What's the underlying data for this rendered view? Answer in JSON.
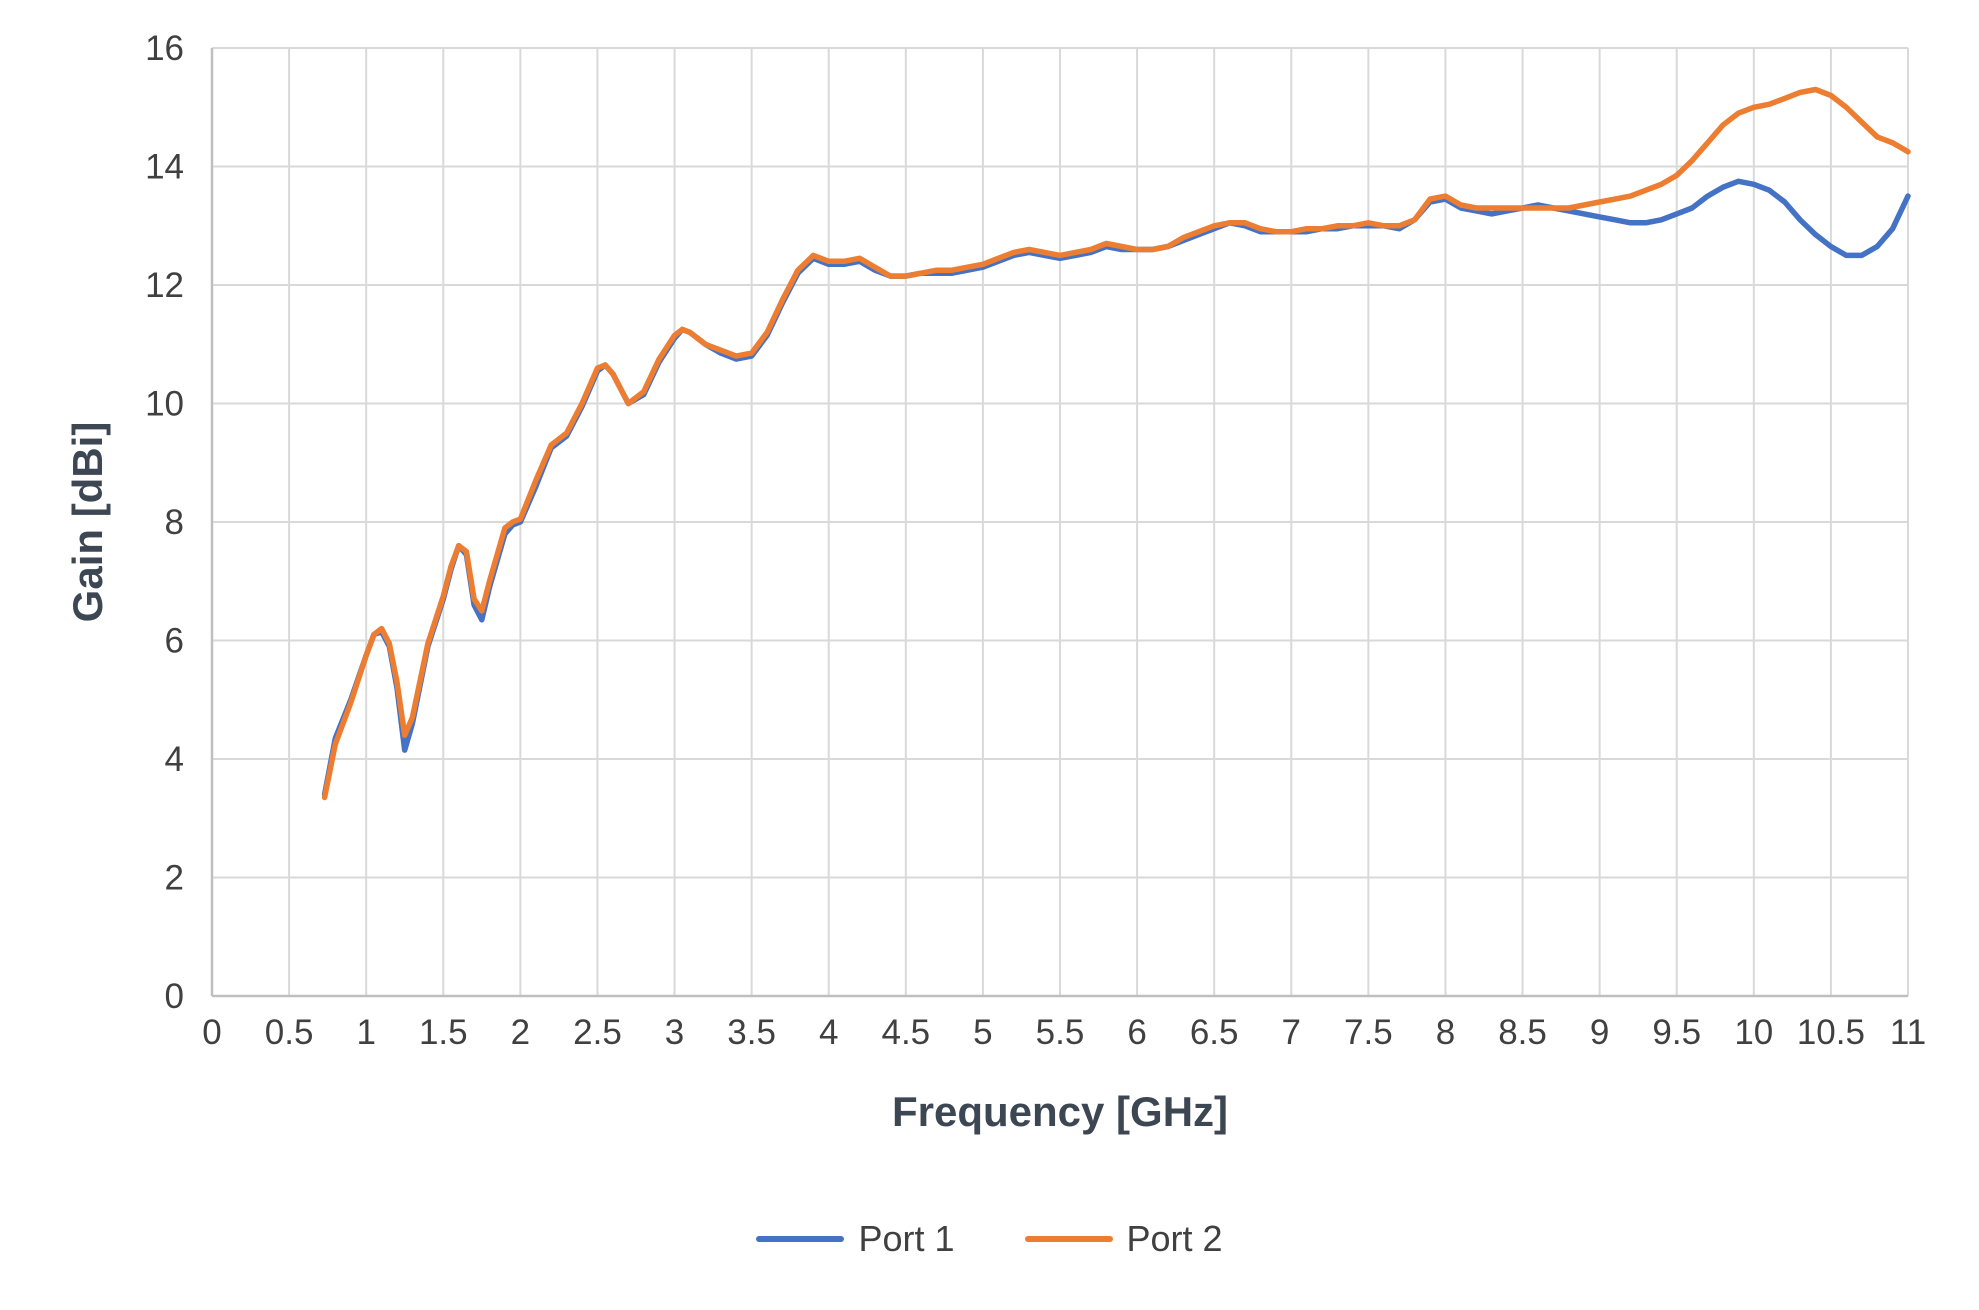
{
  "chart_data": {
    "type": "line",
    "title": "",
    "xlabel": "Frequency [GHz]",
    "ylabel": "Gain [dBi]",
    "xlim": [
      0,
      11
    ],
    "ylim": [
      0,
      16
    ],
    "x_tick_step": 0.5,
    "y_tick_step": 2,
    "x_ticks": [
      "0",
      "0.5",
      "1",
      "1.5",
      "2",
      "2.5",
      "3",
      "3.5",
      "4",
      "4.5",
      "5",
      "5.5",
      "6",
      "6.5",
      "7",
      "7.5",
      "8",
      "8.5",
      "9",
      "9.5",
      "10",
      "10.5",
      "11"
    ],
    "y_ticks": [
      "0",
      "2",
      "4",
      "6",
      "8",
      "10",
      "12",
      "14",
      "16"
    ],
    "grid": true,
    "legend_position": "bottom",
    "colors": {
      "grid": "#d9d9d9",
      "axis_line": "#bfbfbf",
      "tick_text": "#404040",
      "title_text": "#3d4754",
      "port1": "#4472c4",
      "port2": "#ed7d31"
    },
    "x": [
      0.73,
      0.8,
      0.9,
      1.0,
      1.05,
      1.1,
      1.15,
      1.2,
      1.25,
      1.3,
      1.4,
      1.5,
      1.55,
      1.6,
      1.65,
      1.7,
      1.75,
      1.8,
      1.9,
      1.95,
      2.0,
      2.1,
      2.2,
      2.3,
      2.4,
      2.5,
      2.55,
      2.6,
      2.7,
      2.8,
      2.9,
      3.0,
      3.05,
      3.1,
      3.2,
      3.3,
      3.4,
      3.5,
      3.6,
      3.7,
      3.8,
      3.9,
      4.0,
      4.1,
      4.2,
      4.3,
      4.4,
      4.5,
      4.6,
      4.7,
      4.8,
      4.9,
      5.0,
      5.1,
      5.2,
      5.3,
      5.4,
      5.5,
      5.6,
      5.7,
      5.8,
      5.9,
      6.0,
      6.1,
      6.2,
      6.3,
      6.4,
      6.5,
      6.6,
      6.7,
      6.8,
      6.9,
      7.0,
      7.1,
      7.2,
      7.3,
      7.4,
      7.5,
      7.6,
      7.7,
      7.8,
      7.9,
      8.0,
      8.1,
      8.2,
      8.3,
      8.4,
      8.5,
      8.6,
      8.7,
      8.8,
      8.9,
      9.0,
      9.1,
      9.2,
      9.3,
      9.4,
      9.5,
      9.6,
      9.7,
      9.8,
      9.9,
      10.0,
      10.1,
      10.2,
      10.3,
      10.4,
      10.5,
      10.6,
      10.7,
      10.8,
      10.9,
      11.0
    ],
    "series": [
      {
        "name": "Port 1",
        "color": "#4472c4",
        "values": [
          3.4,
          4.35,
          5.0,
          5.75,
          6.1,
          6.15,
          5.9,
          5.2,
          4.15,
          4.6,
          5.9,
          6.7,
          7.2,
          7.6,
          7.45,
          6.6,
          6.35,
          6.9,
          7.8,
          7.95,
          8.0,
          8.6,
          9.25,
          9.45,
          9.95,
          10.55,
          10.65,
          10.5,
          10.0,
          10.15,
          10.7,
          11.1,
          11.25,
          11.2,
          11.0,
          10.85,
          10.75,
          10.8,
          11.15,
          11.7,
          12.2,
          12.45,
          12.35,
          12.35,
          12.4,
          12.25,
          12.15,
          12.15,
          12.2,
          12.2,
          12.2,
          12.25,
          12.3,
          12.4,
          12.5,
          12.55,
          12.5,
          12.45,
          12.5,
          12.55,
          12.65,
          12.6,
          12.6,
          12.6,
          12.65,
          12.75,
          12.85,
          12.95,
          13.05,
          13.0,
          12.9,
          12.9,
          12.9,
          12.9,
          12.95,
          12.95,
          13.0,
          13.0,
          13.0,
          12.95,
          13.1,
          13.4,
          13.45,
          13.3,
          13.25,
          13.2,
          13.25,
          13.3,
          13.35,
          13.3,
          13.25,
          13.2,
          13.15,
          13.1,
          13.05,
          13.05,
          13.1,
          13.2,
          13.3,
          13.5,
          13.65,
          13.75,
          13.7,
          13.6,
          13.4,
          13.1,
          12.85,
          12.65,
          12.5,
          12.5,
          12.65,
          12.95,
          13.5
        ]
      },
      {
        "name": "Port 2",
        "color": "#ed7d31",
        "values": [
          3.35,
          4.25,
          4.95,
          5.75,
          6.1,
          6.2,
          5.95,
          5.3,
          4.4,
          4.7,
          5.95,
          6.75,
          7.25,
          7.6,
          7.5,
          6.7,
          6.5,
          7.0,
          7.9,
          8.0,
          8.05,
          8.7,
          9.3,
          9.5,
          10.0,
          10.6,
          10.65,
          10.5,
          10.0,
          10.2,
          10.75,
          11.15,
          11.25,
          11.2,
          11.0,
          10.9,
          10.8,
          10.85,
          11.2,
          11.75,
          12.25,
          12.5,
          12.4,
          12.4,
          12.45,
          12.3,
          12.15,
          12.15,
          12.2,
          12.25,
          12.25,
          12.3,
          12.35,
          12.45,
          12.55,
          12.6,
          12.55,
          12.5,
          12.55,
          12.6,
          12.7,
          12.65,
          12.6,
          12.6,
          12.65,
          12.8,
          12.9,
          13.0,
          13.05,
          13.05,
          12.95,
          12.9,
          12.9,
          12.95,
          12.95,
          13.0,
          13.0,
          13.05,
          13.0,
          13.0,
          13.1,
          13.45,
          13.5,
          13.35,
          13.3,
          13.3,
          13.3,
          13.3,
          13.3,
          13.3,
          13.3,
          13.35,
          13.4,
          13.45,
          13.5,
          13.6,
          13.7,
          13.85,
          14.1,
          14.4,
          14.7,
          14.9,
          15.0,
          15.05,
          15.15,
          15.25,
          15.3,
          15.2,
          15.0,
          14.75,
          14.5,
          14.4,
          14.25
        ]
      }
    ]
  }
}
